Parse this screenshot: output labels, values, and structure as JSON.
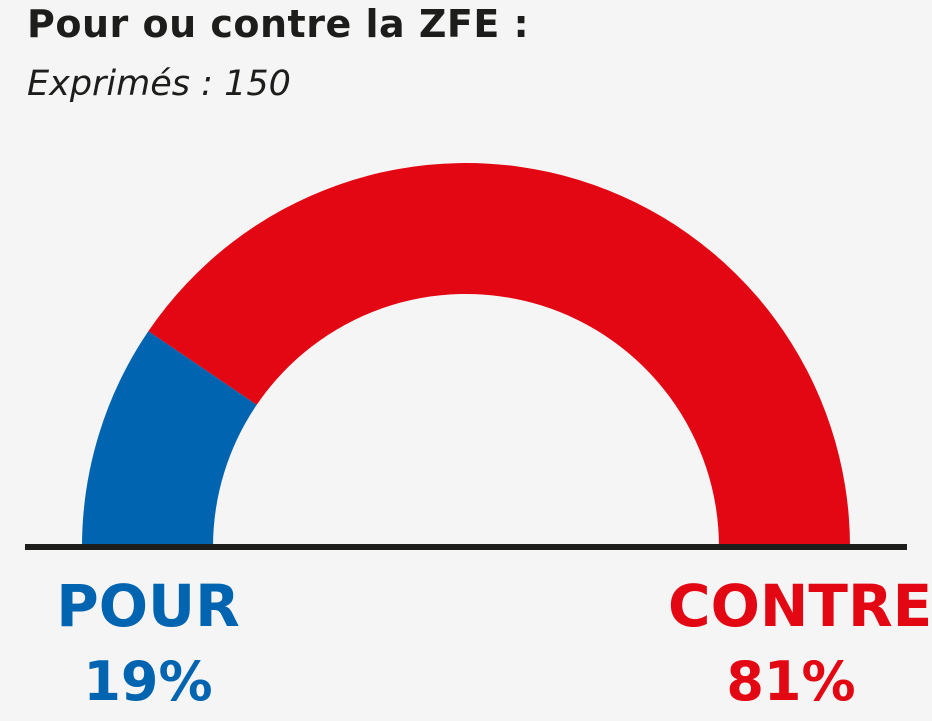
{
  "title": "Pour ou contre la ZFE :",
  "subtitle": "Exprimés : 150",
  "colors": {
    "pour": "#0064b0",
    "contre": "#e30613",
    "baseline": "#1d1d1b",
    "background": "#f5f5f5"
  },
  "chart_data": {
    "type": "pie",
    "variant": "half-donut",
    "title": "Pour ou contre la ZFE :",
    "subtitle": "Exprimés : 150",
    "total": 150,
    "categories": [
      "POUR",
      "CONTRE"
    ],
    "values": [
      19,
      81
    ],
    "value_labels": [
      "19%",
      "81%"
    ],
    "colors": [
      "#0064b0",
      "#e30613"
    ],
    "start_side": "left"
  }
}
